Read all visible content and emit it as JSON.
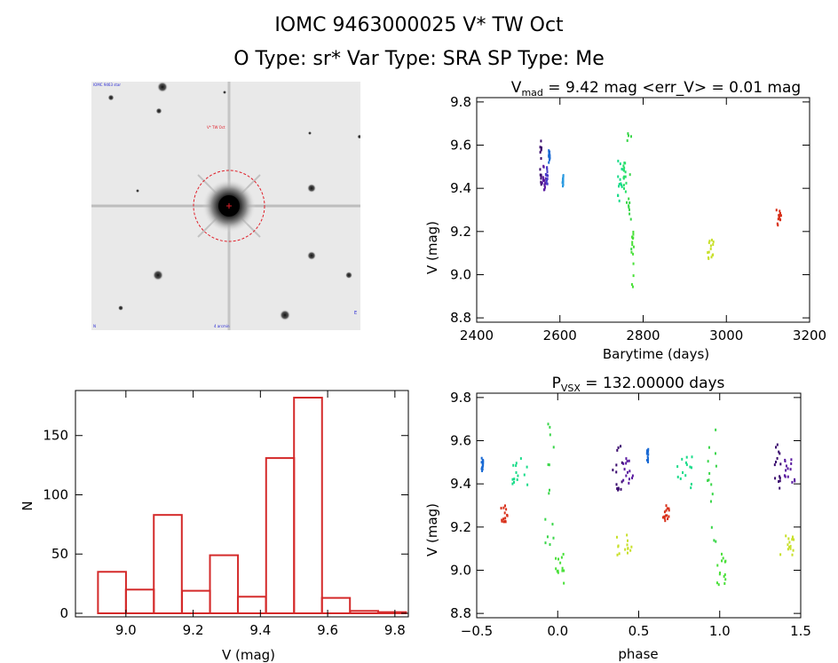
{
  "header": {
    "title_line1": "IOMC 9463000025    V* TW Oct",
    "title_line2": "O Type: sr*  Var Type: SRA  SP Type: Me"
  },
  "colors": {
    "histogram_bar": "#d42a2a",
    "axes": "#000000",
    "finder_circle": "#e0202a",
    "sky_label": "#2a2ad4"
  },
  "chart_data": [
    {
      "id": "light-curve",
      "type": "scatter",
      "title": "V_mad = 9.42 mag <err_V> = 0.01 mag",
      "title_main": "V",
      "title_sub": "mad",
      "title_rest": " = 9.42 mag <err_V> = 0.01 mag",
      "xlabel": "Barytime (days)",
      "ylabel": "V (mag)",
      "xlim": [
        2400,
        3200
      ],
      "ylim": [
        9.82,
        8.78
      ],
      "y_inverted": true,
      "xticks": [
        "2400",
        "2600",
        "2800",
        "3000",
        "3200"
      ],
      "yticks": [
        "8.8",
        "9.0",
        "9.2",
        "9.4",
        "9.6",
        "9.8"
      ],
      "clusters": [
        {
          "x_range": [
            2552,
            2556
          ],
          "y_range": [
            9.37,
            9.62
          ],
          "color": "#3a0a6e"
        },
        {
          "x_range": [
            2556,
            2566
          ],
          "y_range": [
            9.38,
            9.52
          ],
          "color": "#5a1aa0"
        },
        {
          "x_range": [
            2566,
            2572
          ],
          "y_range": [
            9.42,
            9.5
          ],
          "color": "#4a3ac8"
        },
        {
          "x_range": [
            2573,
            2576
          ],
          "y_range": [
            9.5,
            9.58
          ],
          "color": "#1a6ad4"
        },
        {
          "x_range": [
            2606,
            2609
          ],
          "y_range": [
            9.41,
            9.46
          ],
          "color": "#2a9ae0"
        },
        {
          "x_range": [
            2738,
            2752
          ],
          "y_range": [
            9.34,
            9.55
          ],
          "color": "#1adc8a"
        },
        {
          "x_range": [
            2752,
            2760
          ],
          "y_range": [
            9.38,
            9.52
          ],
          "color": "#2ae06a"
        },
        {
          "x_range": [
            2760,
            2772
          ],
          "y_range": [
            9.1,
            9.68
          ],
          "color": "#3ad64a"
        },
        {
          "x_range": [
            2772,
            2778
          ],
          "y_range": [
            8.92,
            9.2
          ],
          "color": "#4ae03a"
        },
        {
          "x_range": [
            2954,
            2972
          ],
          "y_range": [
            9.07,
            9.17
          ],
          "color": "#c8e02a"
        },
        {
          "x_range": [
            3120,
            3132
          ],
          "y_range": [
            9.22,
            9.3
          ],
          "color": "#d8301a"
        }
      ]
    },
    {
      "id": "histogram",
      "type": "bar",
      "title": "",
      "xlabel": "V (mag)",
      "ylabel": "N",
      "xlim": [
        8.85,
        9.84
      ],
      "ylim": [
        -3,
        188
      ],
      "xticks": [
        "9.0",
        "9.2",
        "9.4",
        "9.6",
        "9.8"
      ],
      "yticks": [
        "0",
        "50",
        "100",
        "150"
      ],
      "bin_width": 0.0833,
      "bin_starts": [
        8.917,
        9.0,
        9.083,
        9.167,
        9.25,
        9.333,
        9.417,
        9.5,
        9.583,
        9.667,
        9.75
      ],
      "values": [
        35,
        20,
        83,
        19,
        49,
        14,
        131,
        182,
        13,
        2,
        1
      ]
    },
    {
      "id": "phased-curve",
      "type": "scatter",
      "title": "P_VSX = 132.00000 days",
      "title_main": "P",
      "title_sub": "VSX",
      "title_rest": " = 132.00000 days",
      "xlabel": "phase",
      "ylabel": "V (mag)",
      "xlim": [
        -0.5,
        1.5
      ],
      "ylim": [
        9.82,
        8.78
      ],
      "y_inverted": true,
      "xticks": [
        "−0.5",
        "0.0",
        "0.5",
        "1.0",
        "1.5"
      ],
      "yticks": [
        "8.8",
        "9.0",
        "9.2",
        "9.4",
        "9.6",
        "9.8"
      ],
      "clusters": [
        {
          "x_range": [
            -0.47,
            -0.46
          ],
          "y_range": [
            9.46,
            9.52
          ],
          "color": "#1a6ad4"
        },
        {
          "x_range": [
            -0.35,
            -0.31
          ],
          "y_range": [
            9.22,
            9.3
          ],
          "color": "#d8301a"
        },
        {
          "x_range": [
            -0.28,
            -0.17
          ],
          "y_range": [
            9.38,
            9.53
          ],
          "color": "#1adc8a"
        },
        {
          "x_range": [
            -0.08,
            -0.02
          ],
          "y_range": [
            9.1,
            9.7
          ],
          "color": "#3ad64a"
        },
        {
          "x_range": [
            -0.02,
            0.04
          ],
          "y_range": [
            8.92,
            9.08
          ],
          "color": "#4ae03a"
        },
        {
          "x_range": [
            0.35,
            0.46
          ],
          "y_range": [
            9.07,
            9.17
          ],
          "color": "#c8e02a"
        },
        {
          "x_range": [
            0.34,
            0.4
          ],
          "y_range": [
            9.37,
            9.62
          ],
          "color": "#3a0a6e"
        },
        {
          "x_range": [
            0.4,
            0.47
          ],
          "y_range": [
            9.4,
            9.52
          ],
          "color": "#5a1aa0"
        },
        {
          "x_range": [
            0.55,
            0.56
          ],
          "y_range": [
            9.5,
            9.56
          ],
          "color": "#1a6ad4"
        },
        {
          "x_range": [
            0.65,
            0.69
          ],
          "y_range": [
            9.22,
            9.3
          ],
          "color": "#d8301a"
        },
        {
          "x_range": [
            0.72,
            0.83
          ],
          "y_range": [
            9.38,
            9.53
          ],
          "color": "#1adc8a"
        },
        {
          "x_range": [
            0.92,
            0.98
          ],
          "y_range": [
            9.1,
            9.7
          ],
          "color": "#3ad64a"
        },
        {
          "x_range": [
            0.98,
            1.04
          ],
          "y_range": [
            8.92,
            9.08
          ],
          "color": "#4ae03a"
        },
        {
          "x_range": [
            1.35,
            1.46
          ],
          "y_range": [
            9.07,
            9.17
          ],
          "color": "#c8e02a"
        },
        {
          "x_range": [
            1.34,
            1.4
          ],
          "y_range": [
            9.37,
            9.62
          ],
          "color": "#3a0a6e"
        },
        {
          "x_range": [
            1.4,
            1.47
          ],
          "y_range": [
            9.4,
            9.52
          ],
          "color": "#5a1aa0"
        }
      ]
    }
  ],
  "finder_chart": {
    "label_topleft": "IOMC 9463 star",
    "label_target": "V* TW Oct",
    "label_bottom": "4 arcmin",
    "label_bottomleft": "N",
    "label_right": "E"
  }
}
